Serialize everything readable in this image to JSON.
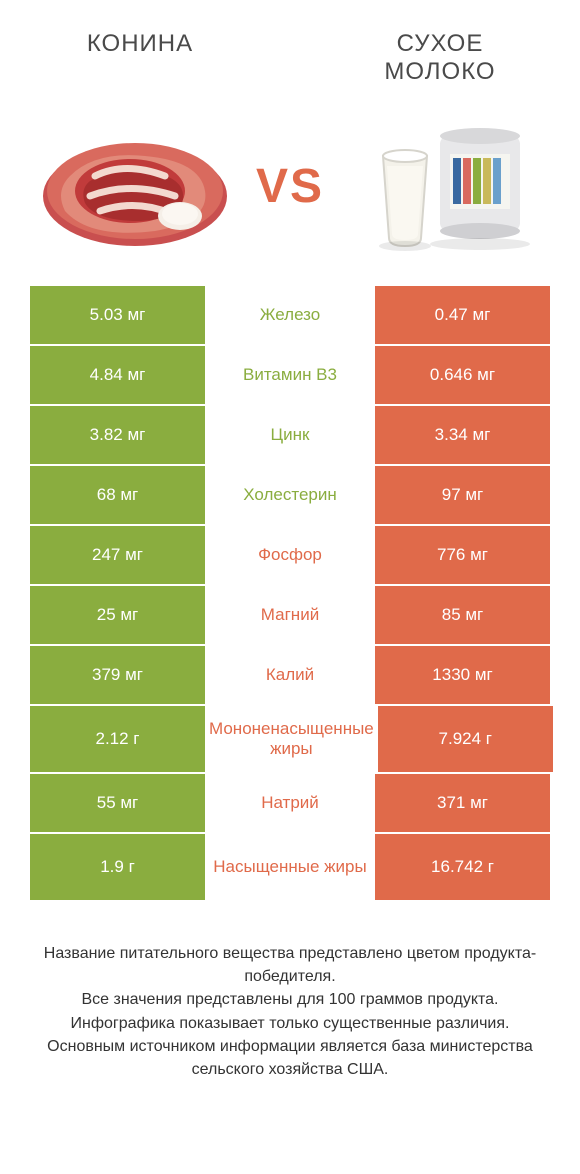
{
  "colors": {
    "green": "#8aad3f",
    "orange": "#e06a4a",
    "text": "#333333",
    "bg": "#ffffff"
  },
  "header": {
    "left": "КОНИНА",
    "right": "СУХОЕ МОЛОКО",
    "vs": "VS"
  },
  "rows": [
    {
      "nutrient": "Железо",
      "left": "5.03 мг",
      "right": "0.47 мг",
      "winner": "left"
    },
    {
      "nutrient": "Витамин B3",
      "left": "4.84 мг",
      "right": "0.646 мг",
      "winner": "left"
    },
    {
      "nutrient": "Цинк",
      "left": "3.82 мг",
      "right": "3.34 мг",
      "winner": "left"
    },
    {
      "nutrient": "Холестерин",
      "left": "68 мг",
      "right": "97 мг",
      "winner": "left"
    },
    {
      "nutrient": "Фосфор",
      "left": "247 мг",
      "right": "776 мг",
      "winner": "right"
    },
    {
      "nutrient": "Магний",
      "left": "25 мг",
      "right": "85 мг",
      "winner": "right"
    },
    {
      "nutrient": "Калий",
      "left": "379 мг",
      "right": "1330 мг",
      "winner": "right"
    },
    {
      "nutrient": "Мононенасыщенные жиры",
      "left": "2.12 г",
      "right": "7.924 г",
      "winner": "right",
      "tall": true
    },
    {
      "nutrient": "Натрий",
      "left": "55 мг",
      "right": "371 мг",
      "winner": "right"
    },
    {
      "nutrient": "Насыщенные жиры",
      "left": "1.9 г",
      "right": "16.742 г",
      "winner": "right",
      "tall": true
    }
  ],
  "footer": {
    "line1": "Название питательного вещества представлено цветом продукта-победителя.",
    "line2": "Все значения представлены для 100 граммов продукта.",
    "line3": "Инфографика показывает только существенные различия.",
    "line4": "Основным источником информации является база министерства сельского хозяйства США."
  }
}
